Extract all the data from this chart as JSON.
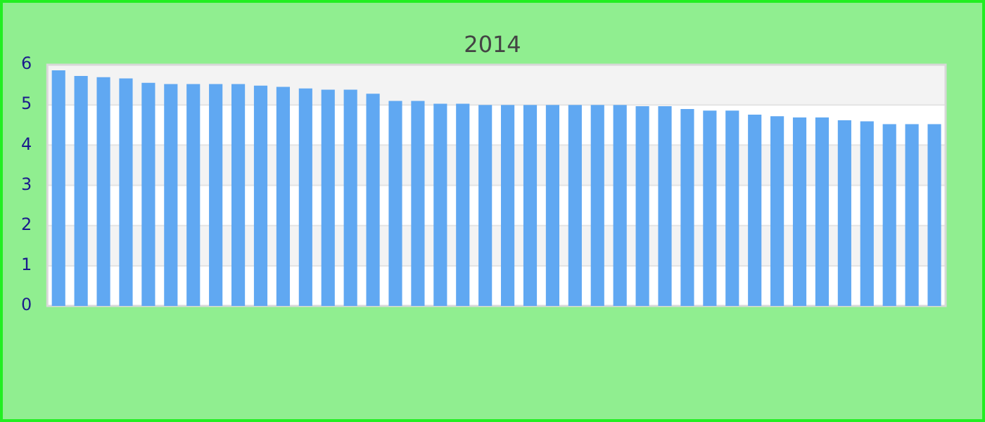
{
  "chart_data": {
    "type": "bar",
    "subtitle": "2014",
    "categories": [
      null,
      null,
      null,
      null,
      null,
      null,
      null,
      null,
      null,
      null,
      null,
      null,
      null,
      null,
      null,
      null,
      null,
      null,
      null,
      null,
      null,
      null,
      null,
      null,
      null,
      null,
      null,
      null,
      null,
      null,
      null,
      null,
      null,
      null,
      null,
      null,
      null,
      null,
      null,
      null
    ],
    "values": [
      5.86,
      5.72,
      5.69,
      5.66,
      5.55,
      5.52,
      5.52,
      5.52,
      5.52,
      5.48,
      5.45,
      5.41,
      5.38,
      5.38,
      5.28,
      5.1,
      5.1,
      5.03,
      5.03,
      5.0,
      5.0,
      5.0,
      5.0,
      5.0,
      5.0,
      5.0,
      4.97,
      4.97,
      4.9,
      4.86,
      4.86,
      4.76,
      4.72,
      4.69,
      4.69,
      4.62,
      4.59,
      4.52,
      4.52,
      4.52
    ],
    "color": "#60a8f2",
    "ylim": [
      0,
      6
    ],
    "yticks": [
      0,
      1,
      2,
      3,
      4,
      5,
      6
    ],
    "grid": "y",
    "legend": false
  }
}
